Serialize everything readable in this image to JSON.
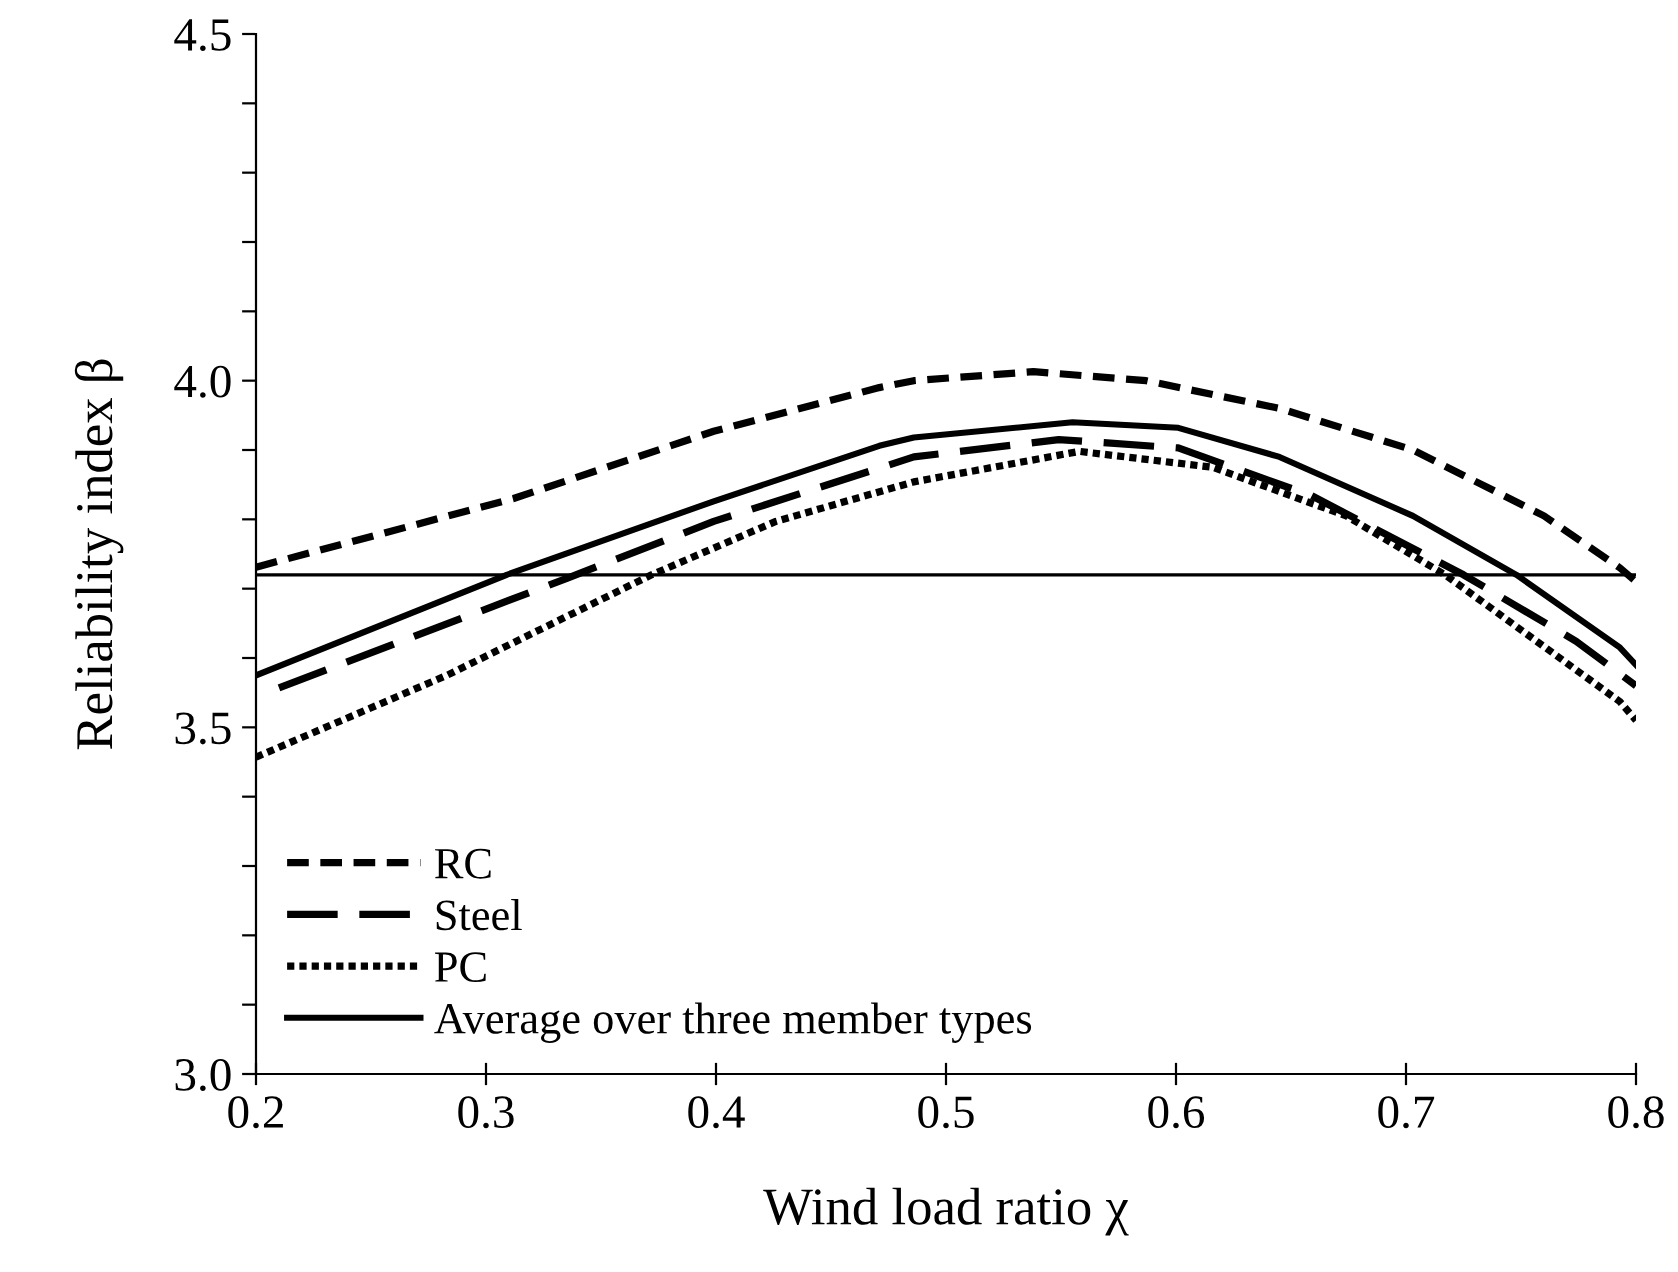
{
  "chart_data": {
    "type": "line",
    "xlabel": "Wind load ratio χ",
    "ylabel": "Reliability index β",
    "xlim": [
      0.2,
      0.8
    ],
    "xticks": [
      0.2,
      0.3,
      0.4,
      0.5,
      0.6,
      0.7,
      0.8
    ],
    "ylim": [
      3.0,
      4.5
    ],
    "yticks": [
      {
        "value": 3,
        "label": "3.0"
      },
      {
        "value": 3.1,
        "label": null
      },
      {
        "value": 3.2,
        "label": null
      },
      {
        "value": 3.3,
        "label": null
      },
      {
        "value": 3.4,
        "label": null
      },
      3.5,
      {
        "value": 3.6,
        "label": null
      },
      {
        "value": 3.7,
        "label": null
      },
      {
        "value": 3.8,
        "label": null
      },
      {
        "value": 3.9,
        "label": null
      },
      {
        "value": 4,
        "label": "4.0"
      },
      {
        "value": 4.1,
        "label": null
      },
      {
        "value": 4.2,
        "label": null
      },
      {
        "value": 4.3,
        "label": null
      },
      {
        "value": 4.4,
        "label": null
      },
      4.5
    ],
    "grid": false,
    "legend": "bottom left",
    "marker": "none",
    "ref_lines": [
      {
        "axis": "y",
        "value": 3.72,
        "color": "#000000",
        "line_style": "solid"
      }
    ],
    "series": [
      {
        "name": "RC",
        "color": "#000000",
        "line_style": "dashed",
        "x": [
          0.2,
          0.312,
          0.399,
          0.471,
          0.486,
          0.538,
          0.587,
          0.645,
          0.703,
          0.76,
          0.793,
          0.8
        ],
        "values": [
          3.731,
          3.83,
          3.927,
          3.99,
          4.0,
          4.013,
          4.0,
          3.96,
          3.9,
          3.805,
          3.73,
          3.71
        ]
      },
      {
        "name": "Steel",
        "color": "#000000",
        "line_style": "longdash",
        "x": [
          0.21,
          0.336,
          0.399,
          0.486,
          0.549,
          0.601,
          0.659,
          0.725,
          0.774,
          0.8
        ],
        "values": [
          3.557,
          3.716,
          3.797,
          3.89,
          3.915,
          3.903,
          3.834,
          3.72,
          3.624,
          3.56
        ]
      },
      {
        "name": "PC",
        "color": "#000000",
        "line_style": "dotted",
        "x": [
          0.2,
          0.283,
          0.372,
          0.426,
          0.486,
          0.558,
          0.616,
          0.674,
          0.717,
          0.793,
          0.8
        ],
        "values": [
          3.457,
          3.575,
          3.72,
          3.797,
          3.854,
          3.898,
          3.875,
          3.805,
          3.72,
          3.537,
          3.51
        ]
      },
      {
        "name": "Average over three member types",
        "color": "#000000",
        "line_style": "solid",
        "x": [
          0.2,
          0.309,
          0.399,
          0.471,
          0.486,
          0.555,
          0.601,
          0.645,
          0.703,
          0.748,
          0.793,
          0.8
        ],
        "values": [
          3.575,
          3.72,
          3.826,
          3.906,
          3.918,
          3.94,
          3.932,
          3.89,
          3.805,
          3.72,
          3.615,
          3.59
        ]
      }
    ]
  }
}
